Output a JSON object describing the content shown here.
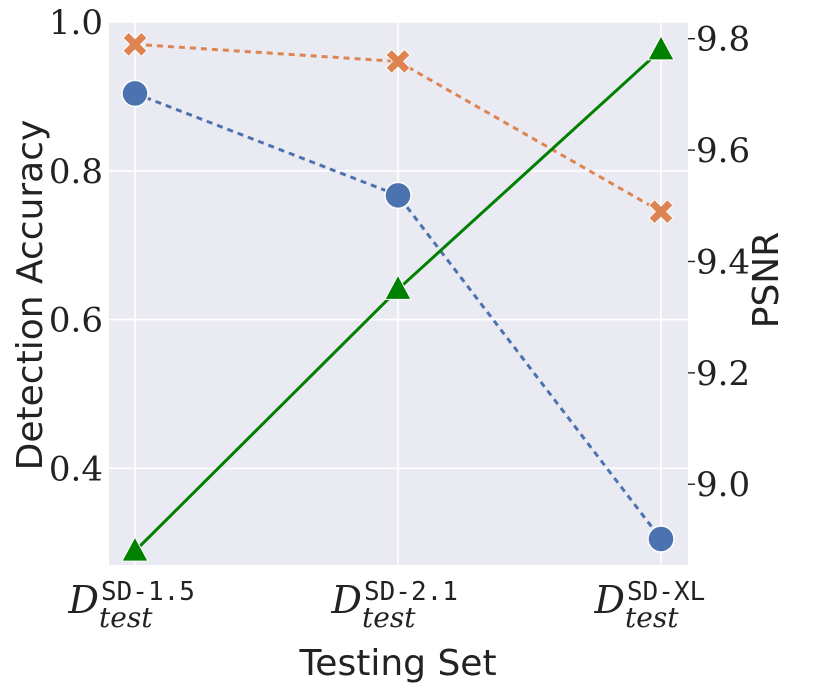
{
  "chart_data": {
    "type": "line",
    "xlabel": "Testing Set",
    "ylabel": "Detection Accuracy",
    "y2label": "PSNR",
    "categories": [
      {
        "main": "D",
        "sup": "SD-1.5",
        "sub": "test"
      },
      {
        "main": "D",
        "sup": "SD-2.1",
        "sub": "test"
      },
      {
        "main": "D",
        "sup": "SD-XL",
        "sub": "test"
      }
    ],
    "ylim": [
      0.27,
      1.0
    ],
    "y2lim": [
      8.855,
      9.83
    ],
    "yticks": [
      "0.4",
      "0.6",
      "0.8",
      "1.0"
    ],
    "y2ticks": [
      "9.0",
      "9.2",
      "9.4",
      "9.6",
      "9.8"
    ],
    "grid": true,
    "series": [
      {
        "axis": "left",
        "marker": "circle",
        "color": "#4c72b0",
        "linestyle": "dashed",
        "values": [
          0.904,
          0.767,
          0.305
        ]
      },
      {
        "axis": "left",
        "marker": "x",
        "color": "#dd8452",
        "linestyle": "dashed",
        "values": [
          0.97,
          0.947,
          0.745
        ]
      },
      {
        "axis": "right",
        "marker": "triangle",
        "color": "#008000",
        "linestyle": "solid",
        "values": [
          8.88,
          9.35,
          9.78
        ]
      }
    ]
  }
}
